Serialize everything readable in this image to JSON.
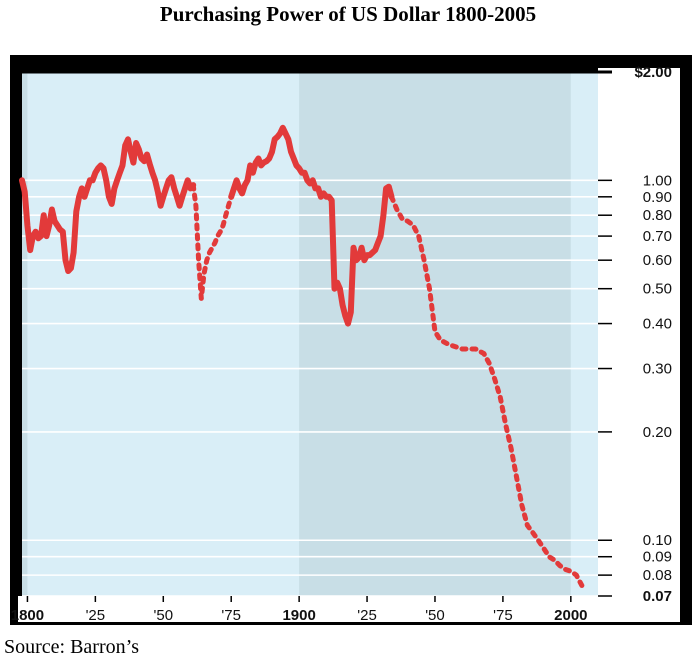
{
  "title": "Purchasing Power of US Dollar 1800-2005",
  "source": "Source: Barron’s",
  "colors": {
    "frame": "#000000",
    "plot_light": "#d9eef7",
    "plot_dark": "#c8dee6",
    "line": "#e23a3a",
    "grid": "#ffffff"
  },
  "chart_data": {
    "type": "line",
    "title": "Purchasing Power of US Dollar 1800-2005",
    "xlabel": "",
    "ylabel": "",
    "y_scale": "log",
    "xlim": [
      1798,
      2010
    ],
    "ylim": [
      0.07,
      2.0
    ],
    "x_ticks": [
      {
        "value": 1800,
        "label": "1800",
        "bold": true
      },
      {
        "value": 1825,
        "label": "'25",
        "bold": false
      },
      {
        "value": 1850,
        "label": "'50",
        "bold": false
      },
      {
        "value": 1875,
        "label": "'75",
        "bold": false
      },
      {
        "value": 1900,
        "label": "1900",
        "bold": true
      },
      {
        "value": 1925,
        "label": "'25",
        "bold": false
      },
      {
        "value": 1950,
        "label": "'50",
        "bold": false
      },
      {
        "value": 1975,
        "label": "'75",
        "bold": false
      },
      {
        "value": 2000,
        "label": "2000",
        "bold": true
      }
    ],
    "y_ticks": [
      {
        "value": 2.0,
        "label": "$2.00",
        "bold": true
      },
      {
        "value": 1.0,
        "label": "1.00",
        "bold": false
      },
      {
        "value": 0.9,
        "label": "0.90",
        "bold": false
      },
      {
        "value": 0.8,
        "label": "0.80",
        "bold": false
      },
      {
        "value": 0.7,
        "label": "0.70",
        "bold": false
      },
      {
        "value": 0.6,
        "label": "0.60",
        "bold": false
      },
      {
        "value": 0.5,
        "label": "0.50",
        "bold": false
      },
      {
        "value": 0.4,
        "label": "0.40",
        "bold": false
      },
      {
        "value": 0.3,
        "label": "0.30",
        "bold": false
      },
      {
        "value": 0.2,
        "label": "0.20",
        "bold": false
      },
      {
        "value": 0.1,
        "label": "0.10",
        "bold": false
      },
      {
        "value": 0.09,
        "label": "0.09",
        "bold": false
      },
      {
        "value": 0.08,
        "label": "0.08",
        "bold": false
      },
      {
        "value": 0.07,
        "label": "0.07",
        "bold": true
      }
    ],
    "shaded_periods": [
      {
        "start": 1800,
        "end": 1900,
        "tone": "light"
      },
      {
        "start": 1900,
        "end": 2000,
        "tone": "dark"
      },
      {
        "start": 2000,
        "end": 2005,
        "tone": "light"
      }
    ],
    "series": [
      {
        "style": "solid",
        "x": [
          1798,
          1799,
          1800,
          1801,
          1802,
          1803,
          1804,
          1805,
          1806,
          1807,
          1808,
          1809,
          1810,
          1811,
          1812,
          1813,
          1814,
          1815,
          1816,
          1817,
          1818,
          1819,
          1820,
          1821,
          1822,
          1823,
          1824,
          1825,
          1826,
          1827,
          1828,
          1829,
          1830,
          1831,
          1832,
          1833,
          1834,
          1835,
          1836,
          1837,
          1838,
          1839,
          1840,
          1841,
          1842,
          1843,
          1844,
          1845,
          1846,
          1847,
          1848,
          1849,
          1850,
          1851,
          1852,
          1853,
          1854,
          1855,
          1856,
          1857,
          1858,
          1859,
          1860,
          1861
        ],
        "y": [
          1.0,
          0.93,
          0.75,
          0.64,
          0.7,
          0.72,
          0.69,
          0.7,
          0.8,
          0.7,
          0.75,
          0.83,
          0.77,
          0.75,
          0.73,
          0.72,
          0.6,
          0.56,
          0.57,
          0.63,
          0.82,
          0.9,
          0.95,
          0.9,
          0.95,
          1.0,
          1.0,
          1.05,
          1.08,
          1.1,
          1.08,
          1.0,
          0.9,
          0.86,
          0.95,
          1.0,
          1.05,
          1.1,
          1.25,
          1.3,
          1.2,
          1.12,
          1.27,
          1.22,
          1.15,
          1.13,
          1.18,
          1.11,
          1.05,
          1.0,
          0.93,
          0.85,
          0.9,
          0.95,
          1.0,
          1.02,
          0.95,
          0.9,
          0.85,
          0.9,
          0.95,
          1.0,
          0.95,
          0.97
        ]
      },
      {
        "style": "dotted",
        "x": [
          1861,
          1862,
          1863,
          1864,
          1865,
          1866,
          1867,
          1868,
          1869,
          1870,
          1871,
          1872,
          1873,
          1874,
          1875
        ],
        "y": [
          0.97,
          0.85,
          0.6,
          0.47,
          0.55,
          0.6,
          0.63,
          0.65,
          0.67,
          0.7,
          0.72,
          0.75,
          0.8,
          0.85,
          0.9
        ]
      },
      {
        "style": "solid",
        "x": [
          1875,
          1876,
          1877,
          1878,
          1879,
          1880,
          1881,
          1882,
          1883,
          1884,
          1885,
          1886,
          1887,
          1888,
          1889,
          1890,
          1891,
          1892,
          1893,
          1894,
          1895,
          1896,
          1897,
          1898,
          1899,
          1900,
          1901,
          1902,
          1903,
          1904,
          1905,
          1906,
          1907,
          1908,
          1909,
          1910,
          1911,
          1912,
          1913,
          1914,
          1915,
          1916,
          1917,
          1918,
          1919,
          1920,
          1921,
          1922,
          1923,
          1924,
          1925,
          1926,
          1927,
          1928,
          1929,
          1930,
          1931,
          1932,
          1933,
          1934
        ],
        "y": [
          0.9,
          0.95,
          1.0,
          0.95,
          0.92,
          0.97,
          1.0,
          1.1,
          1.05,
          1.12,
          1.15,
          1.1,
          1.12,
          1.13,
          1.15,
          1.2,
          1.3,
          1.32,
          1.35,
          1.4,
          1.35,
          1.3,
          1.2,
          1.15,
          1.1,
          1.08,
          1.05,
          1.05,
          1.0,
          0.98,
          1.0,
          0.95,
          0.95,
          0.9,
          0.92,
          0.9,
          0.9,
          0.88,
          0.5,
          0.52,
          0.5,
          0.45,
          0.42,
          0.4,
          0.43,
          0.65,
          0.6,
          0.61,
          0.65,
          0.6,
          0.62,
          0.62,
          0.63,
          0.64,
          0.67,
          0.7,
          0.8,
          0.95,
          0.96,
          0.9
        ]
      },
      {
        "style": "dotted",
        "x": [
          1934,
          1936,
          1938,
          1940,
          1942,
          1944,
          1946,
          1948,
          1950,
          1952,
          1955,
          1960,
          1965,
          1968,
          1970,
          1972,
          1974,
          1976,
          1978,
          1980,
          1982,
          1984,
          1986,
          1988,
          1990,
          1992,
          1994,
          1996,
          1998,
          2000,
          2002,
          2004,
          2005
        ],
        "y": [
          0.9,
          0.83,
          0.78,
          0.77,
          0.75,
          0.7,
          0.6,
          0.5,
          0.38,
          0.36,
          0.35,
          0.34,
          0.34,
          0.33,
          0.31,
          0.28,
          0.25,
          0.21,
          0.18,
          0.15,
          0.125,
          0.11,
          0.105,
          0.1,
          0.095,
          0.09,
          0.088,
          0.085,
          0.083,
          0.082,
          0.08,
          0.075,
          0.073
        ]
      }
    ]
  }
}
